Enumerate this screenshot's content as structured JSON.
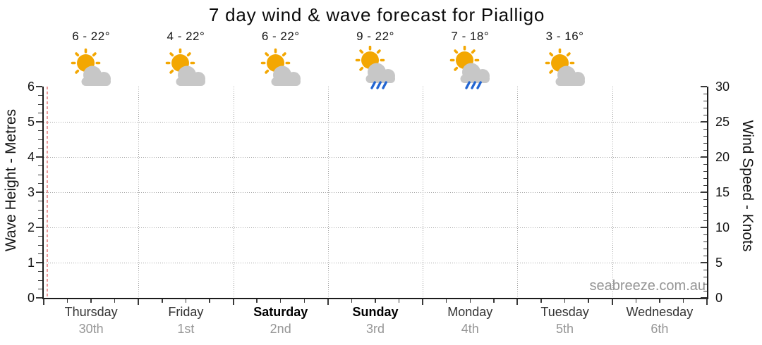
{
  "title": "7 day wind & wave forecast for Pialligo",
  "watermark": "seabreeze.com.au",
  "chart_data": {
    "type": "line",
    "title": "7 day wind & wave forecast for Pialligo",
    "x_categories": [
      "Thursday",
      "Friday",
      "Saturday",
      "Sunday",
      "Monday",
      "Tuesday",
      "Wednesday"
    ],
    "x_dates": [
      "30th",
      "1st",
      "2nd",
      "3rd",
      "4th",
      "5th",
      "6th"
    ],
    "series": [],
    "left_axis": {
      "label": "Wave Height - Metres",
      "min": 0,
      "max": 6,
      "ticks": [
        0,
        1,
        2,
        3,
        4,
        5,
        6
      ]
    },
    "right_axis": {
      "label": "Wind Speed - Knots",
      "min": 0,
      "max": 30,
      "ticks": [
        0,
        5,
        10,
        15,
        20,
        25,
        30
      ]
    },
    "grid": true,
    "legend": false
  },
  "days": [
    {
      "name": "Thursday",
      "date": "30th",
      "temp_range": "6 - 22°",
      "icon": "sun-cloud",
      "weekend": false
    },
    {
      "name": "Friday",
      "date": "1st",
      "temp_range": "4 - 22°",
      "icon": "sun-cloud",
      "weekend": false
    },
    {
      "name": "Saturday",
      "date": "2nd",
      "temp_range": "6 - 22°",
      "icon": "sun-cloud",
      "weekend": true
    },
    {
      "name": "Sunday",
      "date": "3rd",
      "temp_range": "9 - 22°",
      "icon": "sun-cloud-rain",
      "weekend": true
    },
    {
      "name": "Monday",
      "date": "4th",
      "temp_range": "7 - 18°",
      "icon": "sun-cloud-rain",
      "weekend": false
    },
    {
      "name": "Tuesday",
      "date": "5th",
      "temp_range": "3 - 16°",
      "icon": "sun-cloud",
      "weekend": false
    },
    {
      "name": "Wednesday",
      "date": "6th",
      "temp_range": null,
      "icon": null,
      "weekend": false
    }
  ],
  "colors": {
    "sun": "#f3a702",
    "cloud": "#c7c7c7",
    "rain": "#2265d2",
    "now_line": "#ec9b9b",
    "grid": "#a2a2a2"
  }
}
